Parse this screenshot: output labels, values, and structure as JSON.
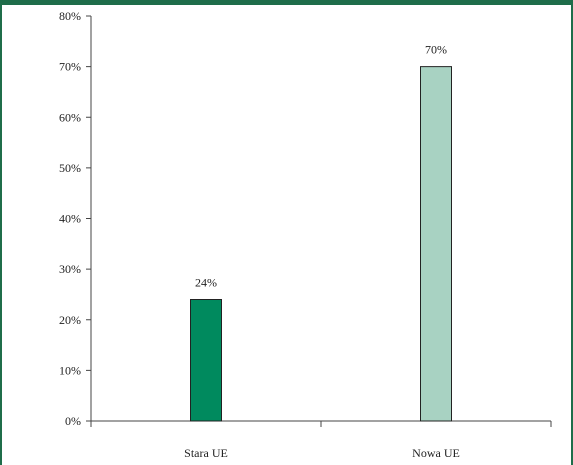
{
  "colors": {
    "frame": "#1f6d4a",
    "bar_stara": "#008a5e",
    "bar_nowa": "#a8d2c2",
    "axis": "#444444",
    "bar_outline": "#222222"
  },
  "chart_data": {
    "type": "bar",
    "title": "",
    "xlabel": "",
    "ylabel": "",
    "categories": [
      "Stara UE",
      "Nowa UE"
    ],
    "values": [
      24,
      70
    ],
    "value_labels": [
      "24%",
      "70%"
    ],
    "ylim": [
      0,
      80
    ],
    "yticks": [
      0,
      10,
      20,
      30,
      40,
      50,
      60,
      70,
      80
    ],
    "ytick_labels": [
      "0%",
      "10%",
      "20%",
      "30%",
      "40%",
      "50%",
      "60%",
      "70%",
      "80%"
    ],
    "grid": false,
    "legend": "none"
  }
}
